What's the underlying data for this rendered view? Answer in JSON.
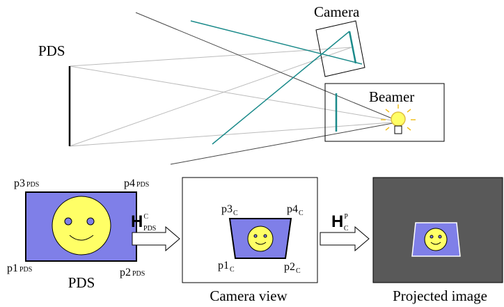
{
  "top": {
    "pds_label": "PDS",
    "camera_label": "Camera",
    "beamer_label": "Beamer"
  },
  "panels": [
    {
      "corners": [
        {
          "main": "p3",
          "sub": "PDS"
        },
        {
          "main": "p4",
          "sub": "PDS"
        },
        {
          "main": "p1",
          "sub": "PDS"
        },
        {
          "main": "p2",
          "sub": "PDS"
        }
      ],
      "caption": "PDS"
    },
    {
      "corners": [
        {
          "main": "p3",
          "sub": "C"
        },
        {
          "main": "p4",
          "sub": "C"
        },
        {
          "main": "p1",
          "sub": "C"
        },
        {
          "main": "p2",
          "sub": "C"
        }
      ],
      "caption": "Camera view"
    },
    {
      "caption": "Projected image"
    }
  ],
  "arrows": [
    {
      "main": "H",
      "sup": "C",
      "sub": "PDS"
    },
    {
      "main": "H",
      "sup": "P",
      "sub": "C"
    }
  ]
}
